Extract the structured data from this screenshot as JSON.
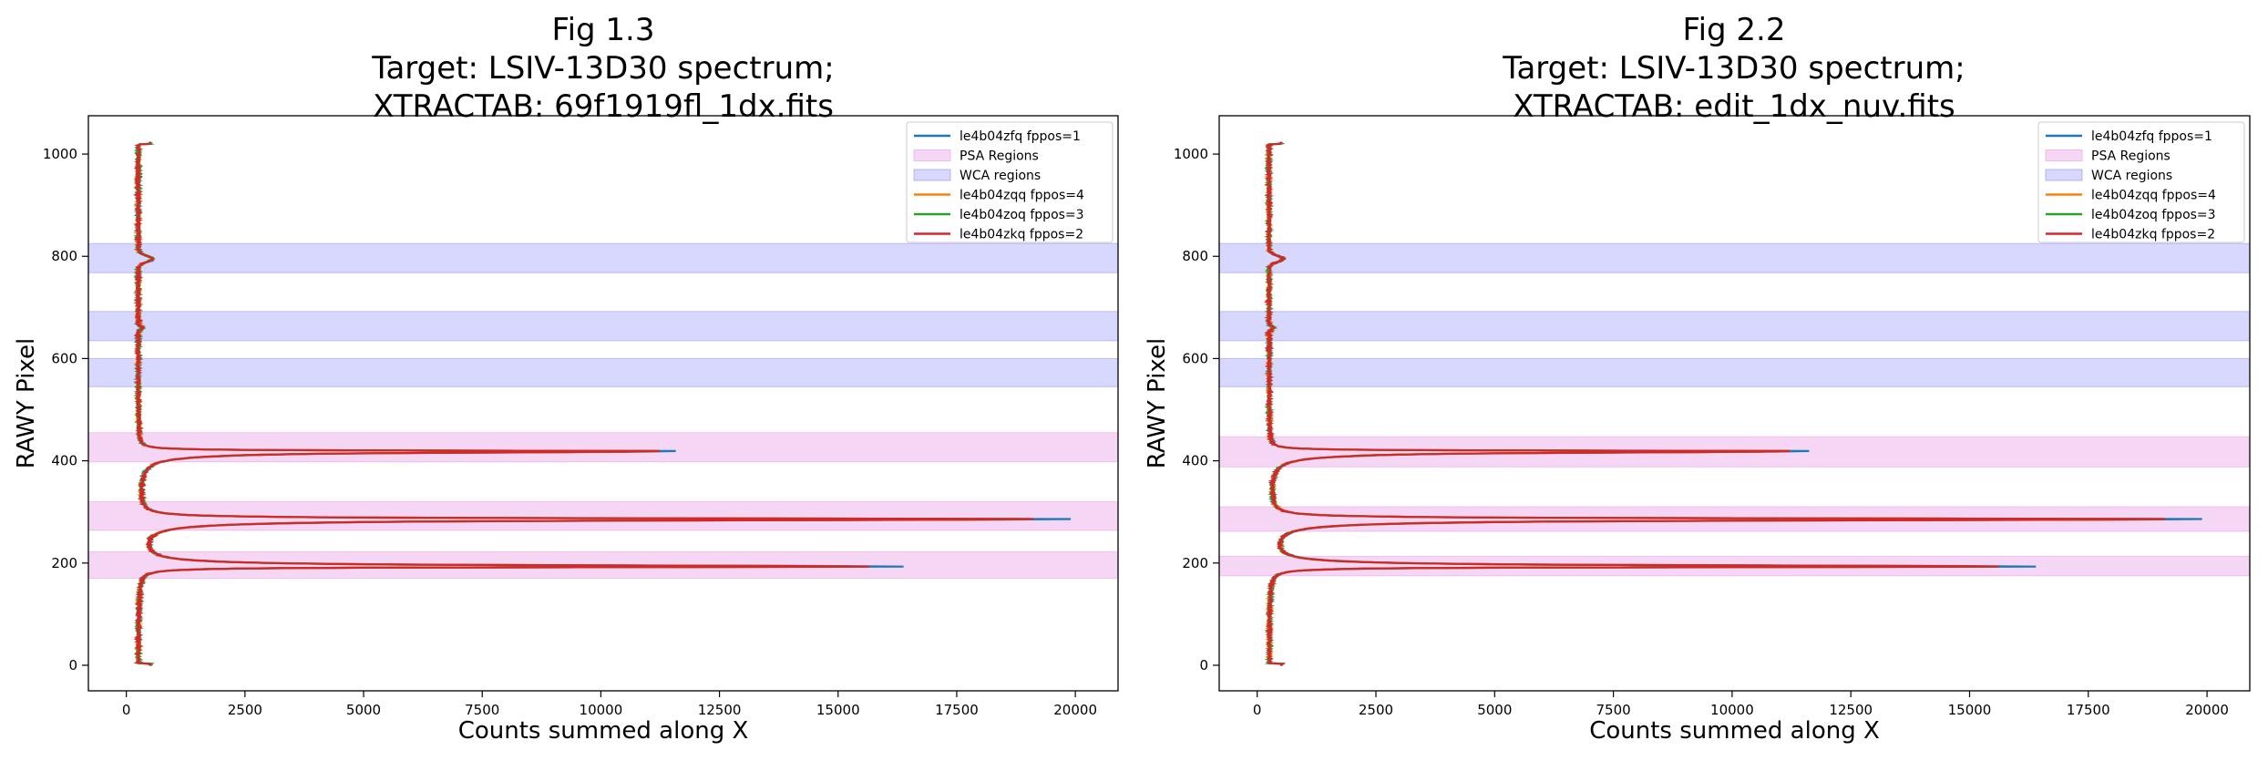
{
  "charts": [
    {
      "title_lines": [
        "Fig 1.3",
        "Target: LSIV-13D30 spectrum;",
        "XTRACTAB: 69f1919fl_1dx.fits"
      ],
      "xlabel": "Counts summed along X",
      "ylabel": "RAWY Pixel",
      "x_ticks": [
        "0",
        "2500",
        "5000",
        "7500",
        "10000",
        "12500",
        "15000",
        "17500",
        "20000"
      ],
      "y_ticks": [
        "0",
        "200",
        "400",
        "600",
        "800",
        "1000"
      ],
      "legend": [
        "le4b04zfq fppos=1",
        "PSA Regions",
        "WCA regions",
        "le4b04zqq fppos=4",
        "le4b04zoq fppos=3",
        "le4b04zkq fppos=2"
      ]
    },
    {
      "title_lines": [
        "Fig 2.2",
        "Target: LSIV-13D30 spectrum;",
        "XTRACTAB: edit_1dx_nuv.fits"
      ],
      "xlabel": "Counts summed along X",
      "ylabel": "RAWY Pixel",
      "x_ticks": [
        "0",
        "2500",
        "5000",
        "7500",
        "10000",
        "12500",
        "15000",
        "17500",
        "20000"
      ],
      "y_ticks": [
        "0",
        "200",
        "400",
        "600",
        "800",
        "1000"
      ],
      "legend": [
        "le4b04zfq fppos=1",
        "PSA Regions",
        "WCA regions",
        "le4b04zqq fppos=4",
        "le4b04zoq fppos=3",
        "le4b04zkq fppos=2"
      ]
    }
  ],
  "chart_data": [
    {
      "type": "line",
      "orientation": "horizontal profile (x = counts, y = RAWY pixel)",
      "title": "Fig 1.3 Target: LSIV-13D30 spectrum; XTRACTAB: 69f1919fl_1dx.fits",
      "xlabel": "Counts summed along X",
      "ylabel": "RAWY Pixel",
      "xlim": [
        -800,
        20900
      ],
      "ylim": [
        -50,
        1075
      ],
      "psa_regions": [
        [
          170,
          222
        ],
        [
          264,
          320
        ],
        [
          398,
          455
        ]
      ],
      "wca_regions": [
        [
          545,
          600
        ],
        [
          635,
          692
        ],
        [
          768,
          825
        ]
      ],
      "series": [
        {
          "name": "le4b04zfq fppos=1",
          "color": "#1f77b4",
          "peaks": [
            {
              "y": 193,
              "x": 16350
            },
            {
              "y": 286,
              "x": 19850
            },
            {
              "y": 419,
              "x": 11600
            }
          ]
        },
        {
          "name": "le4b04zqq fppos=4",
          "color": "#ff7f0e",
          "peaks": [
            {
              "y": 193,
              "x": 15500
            },
            {
              "y": 286,
              "x": 19000
            },
            {
              "y": 419,
              "x": 11200
            }
          ]
        },
        {
          "name": "le4b04zoq fppos=3",
          "color": "#2ca02c",
          "peaks": [
            {
              "y": 193,
              "x": 15500
            },
            {
              "y": 286,
              "x": 19000
            },
            {
              "y": 419,
              "x": 11200
            }
          ]
        },
        {
          "name": "le4b04zkq fppos=2",
          "color": "#d62728",
          "peaks": [
            {
              "y": 193,
              "x": 15600
            },
            {
              "y": 286,
              "x": 19100
            },
            {
              "y": 419,
              "x": 11200
            }
          ]
        }
      ],
      "baseline_counts": 250,
      "y_range": [
        0,
        1023
      ],
      "secondary_bump": {
        "y": 795,
        "x": 550
      }
    },
    {
      "type": "line",
      "orientation": "horizontal profile (x = counts, y = RAWY pixel)",
      "title": "Fig 2.2 Target: LSIV-13D30 spectrum; XTRACTAB: edit_1dx_nuv.fits",
      "xlabel": "Counts summed along X",
      "ylabel": "RAWY Pixel",
      "xlim": [
        -800,
        20900
      ],
      "ylim": [
        -50,
        1075
      ],
      "psa_regions": [
        [
          175,
          213
        ],
        [
          262,
          310
        ],
        [
          388,
          447
        ]
      ],
      "wca_regions": [
        [
          545,
          600
        ],
        [
          635,
          692
        ],
        [
          768,
          825
        ]
      ],
      "series": [
        {
          "name": "le4b04zfq fppos=1",
          "color": "#1f77b4",
          "peaks": [
            {
              "y": 193,
              "x": 16350
            },
            {
              "y": 286,
              "x": 19850
            },
            {
              "y": 419,
              "x": 11600
            }
          ]
        },
        {
          "name": "le4b04zqq fppos=4",
          "color": "#ff7f0e",
          "peaks": [
            {
              "y": 193,
              "x": 15500
            },
            {
              "y": 286,
              "x": 19000
            },
            {
              "y": 419,
              "x": 11200
            }
          ]
        },
        {
          "name": "le4b04zoq fppos=3",
          "color": "#2ca02c",
          "peaks": [
            {
              "y": 193,
              "x": 15500
            },
            {
              "y": 286,
              "x": 19000
            },
            {
              "y": 419,
              "x": 11200
            }
          ]
        },
        {
          "name": "le4b04zkq fppos=2",
          "color": "#d62728",
          "peaks": [
            {
              "y": 193,
              "x": 15600
            },
            {
              "y": 286,
              "x": 19100
            },
            {
              "y": 419,
              "x": 11200
            }
          ]
        }
      ],
      "baseline_counts": 250,
      "y_range": [
        0,
        1023
      ],
      "secondary_bump": {
        "y": 795,
        "x": 550
      }
    }
  ],
  "colors": {
    "psa": "#e8a6e8",
    "wca": "#9999ff",
    "fppos1": "#1f77b4",
    "fppos4": "#ff7f0e",
    "fppos3": "#2ca02c",
    "fppos2": "#d62728"
  }
}
